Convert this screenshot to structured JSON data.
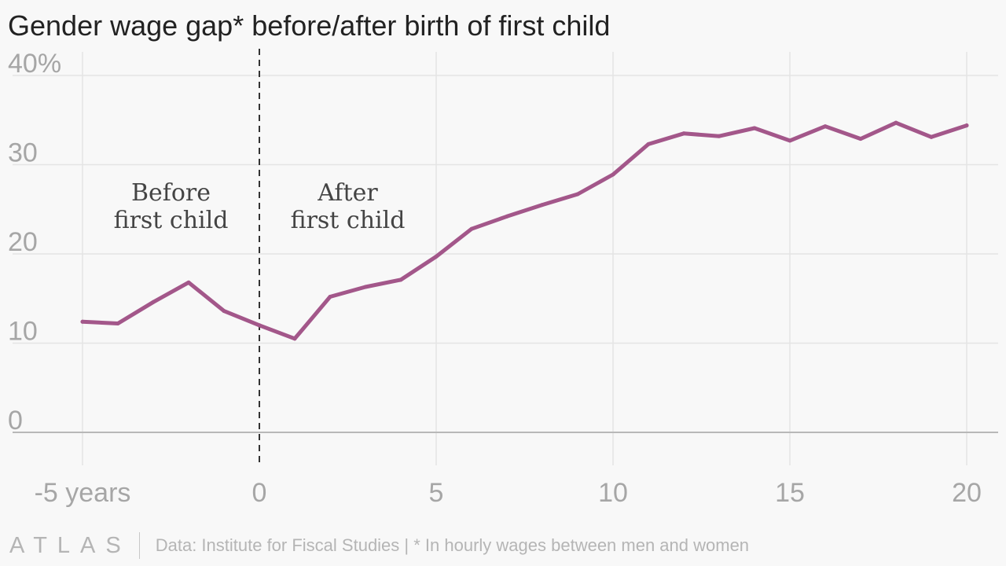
{
  "title": "Gender wage gap* before/after birth of first child",
  "footer": {
    "logo": "ATLAS",
    "source": "Data: Institute for Fiscal Studies | * In hourly wages between men and women"
  },
  "colors": {
    "line": "#a3578a",
    "grid": "#e4e4e4",
    "axis": "#b8b8b8",
    "tick_label": "#a6a6a6",
    "annotation": "#444444",
    "divider": "#333333"
  },
  "chart_data": {
    "type": "line",
    "title": "Gender wage gap* before/after birth of first child",
    "xlabel": "",
    "ylabel": "",
    "xlim": [
      -5,
      20
    ],
    "ylim": [
      0,
      40
    ],
    "x_ticks": [
      {
        "value": -5,
        "label": "-5 years"
      },
      {
        "value": 0,
        "label": "0"
      },
      {
        "value": 5,
        "label": "5"
      },
      {
        "value": 10,
        "label": "10"
      },
      {
        "value": 15,
        "label": "15"
      },
      {
        "value": 20,
        "label": "20"
      }
    ],
    "y_ticks": [
      {
        "value": 0,
        "label": "0"
      },
      {
        "value": 10,
        "label": "10"
      },
      {
        "value": 20,
        "label": "20"
      },
      {
        "value": 30,
        "label": "30"
      },
      {
        "value": 40,
        "label": "40%"
      }
    ],
    "grid": true,
    "divider_at": 0,
    "annotations": [
      {
        "x": -2.5,
        "y": 26,
        "lines": [
          "Before",
          "first child"
        ]
      },
      {
        "x": 2.5,
        "y": 26,
        "lines": [
          "After",
          "first child"
        ]
      }
    ],
    "series": [
      {
        "x": [
          -5,
          -4,
          -3,
          -2,
          -1,
          0,
          1,
          2,
          3,
          4,
          5,
          6,
          7,
          8,
          9,
          10,
          11,
          12,
          13,
          14,
          15,
          16,
          17,
          18,
          19,
          20
        ],
        "values": [
          12.4,
          12.2,
          14.6,
          16.8,
          13.6,
          12.0,
          10.5,
          15.2,
          16.3,
          17.1,
          19.7,
          22.8,
          24.2,
          25.5,
          26.7,
          28.9,
          32.3,
          33.5,
          33.2,
          34.1,
          32.7,
          34.3,
          32.9,
          34.7,
          33.1,
          34.4
        ]
      }
    ]
  }
}
